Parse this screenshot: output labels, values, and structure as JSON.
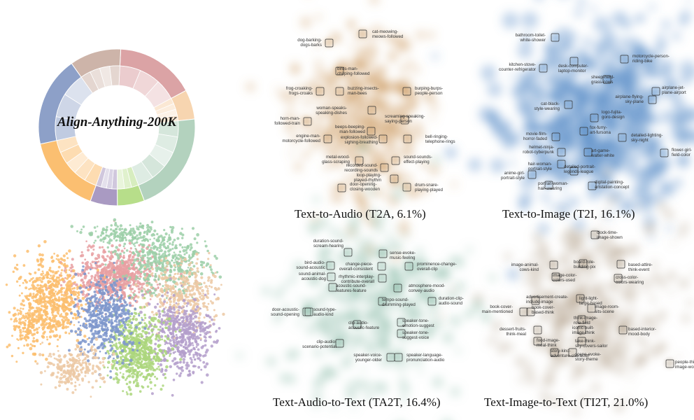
{
  "colors": {
    "ring_outer": [
      "#dba3a5",
      "#f7d5b0",
      "#b3d2be",
      "#b7de8a",
      "#a99ac2",
      "#fbbf71",
      "#8da0c8",
      "#cdb4a9"
    ],
    "t2a": "#c9965a",
    "t2i": "#5b8fc9",
    "ta2t": "#86b8a3",
    "ti2t": "#a59178",
    "scatter_pink": "#e7a0a2",
    "scatter_green": "#9ccfa8",
    "scatter_orange": "#fbbe6e",
    "scatter_blue": "#7f98cc",
    "scatter_lime": "#abd67c",
    "scatter_purple": "#b49fcb",
    "scatter_tan": "#ecc9a5"
  },
  "overview": {
    "title": "Align-Anything-200K"
  },
  "chart_data": [
    {
      "type": "pie",
      "title": "Align-Anything-200K",
      "slices": [
        {
          "value": 16.4,
          "color": "#dba3a5"
        },
        {
          "value": 6.1,
          "color": "#f7d5b0"
        },
        {
          "value": 21.0,
          "color": "#b3d2be"
        },
        {
          "value": 5.6,
          "color": "#b7de8a"
        },
        {
          "value": 5.6,
          "color": "#a99ac2"
        },
        {
          "value": 16.1,
          "color": "#fbbf71"
        },
        {
          "value": 18.6,
          "color": "#8da0c8"
        },
        {
          "value": 10.6,
          "color": "#cdb4a9"
        }
      ]
    },
    {
      "type": "scatter",
      "caption": "Text-to-Audio (T2A, 6.1%)",
      "labels": [
        [
          "cat-meowing-",
          "meows-followed"
        ],
        [
          "dog-barking-",
          "dogs-barks"
        ],
        [
          "birds-man-",
          "chirping-followed"
        ],
        [
          "frog-croaking-",
          "frogs-croaks"
        ],
        [
          "buzzing-insects-",
          "man-bees"
        ],
        [
          "burping-burps-",
          "people-person"
        ],
        [
          "woman-speaks-",
          "speaking-dishes"
        ],
        [
          "screaming-speaking-",
          "saying-person"
        ],
        [
          "horn-man-",
          "followed-train"
        ],
        [
          "beeps-beeping-",
          "man-followed"
        ],
        [
          "engine-man-",
          "motorcycle-followed"
        ],
        [
          "explosion-followed-",
          "sighing-breathing"
        ],
        [
          "bell-ringing-",
          "telephone-rings"
        ],
        [
          "metal-wood-",
          "glass-scraping"
        ],
        [
          "sound-sounds-",
          "effect-playing"
        ],
        [
          "recorded-sound-",
          "recording-sounds"
        ],
        [
          "loop-playing-",
          "played-rhythm"
        ],
        [
          "drum-snare-",
          "playing-played"
        ],
        [
          "door-opening-",
          "closing-wooden"
        ]
      ]
    },
    {
      "type": "scatter",
      "caption": "Text-to-Image (T2I, 16.1%)",
      "labels": [
        [
          "bathroom-toilet-",
          "white-shower"
        ],
        [
          "kitchen-stove-",
          "counter-refrigerator"
        ],
        [
          "desk-computer-",
          "laptop-monitor"
        ],
        [
          "motorcycle-person-",
          "riding-bike"
        ],
        [
          "sheep-herd-",
          "grass-cows"
        ],
        [
          "airplane-jet-",
          "plane-airport"
        ],
        [
          "airplane-flying-",
          "sky-plane"
        ],
        [
          "cat-black-",
          "style-wearing"
        ],
        [
          "logo-fujita-",
          "goro-design"
        ],
        [
          "fox-furry-",
          "art-fursona"
        ],
        [
          "movie-film-",
          "horror-faded"
        ],
        [
          "detailed-lighting-",
          "sky-night"
        ],
        [
          "helmet-ninja-",
          "robot-cyberpunk"
        ],
        [
          "art-game-",
          "walter-white"
        ],
        [
          "flower-girl-",
          "field-color"
        ],
        [
          "hair-woman-",
          "portrait-style"
        ],
        [
          "detailed-portrait-",
          "legends-league"
        ],
        [
          "anime-girl-",
          "portrait-style"
        ],
        [
          "portrait-woman-",
          "hair-wearing"
        ],
        [
          "digital-painting-",
          "artstation-concept"
        ]
      ]
    },
    {
      "type": "scatter",
      "caption": "Text-Audio-to-Text (TA2T, 16.4%)",
      "labels": [
        [
          "duration-sound-",
          "scream-hearing"
        ],
        [
          "sense-evoke-",
          "music-feeling"
        ],
        [
          "bird-audio-",
          "sound-acoustic"
        ],
        [
          "change-piece-",
          "overall-consistent"
        ],
        [
          "prominence-change-",
          "overall-clip"
        ],
        [
          "sound-animal-",
          "acoustic-dog"
        ],
        [
          "rhythmic-interplay-",
          "contribute-overall"
        ],
        [
          "acoustic-sound-",
          "features-feature"
        ],
        [
          "atmosphere-mood-",
          "convey-audio"
        ],
        [
          "tempo-sound-",
          "drumming-played"
        ],
        [
          "duration-clip-",
          "audio-sound"
        ],
        [
          "door-acoustic-",
          "sound-opening"
        ],
        [
          "sound-type-",
          "audio-kind"
        ],
        [
          "speaker-tone-",
          "emotion-suggest"
        ],
        [
          "clip-audio-",
          "acoustic-feature"
        ],
        [
          "speaker-tone-",
          "suggest-voice"
        ],
        [
          "clip-audio-",
          "scenario-potential"
        ],
        [
          "speaker-voice-",
          "younger-older"
        ],
        [
          "speaker-language-",
          "pronunciation-audio"
        ]
      ]
    },
    {
      "type": "scatter",
      "caption": "Text-Image-to-Text (TI2T, 21.0%)",
      "labels": [
        [
          "clock-time-",
          "image-shown"
        ],
        [
          "image-animal-",
          "cows-kind"
        ],
        [
          "board-role-",
          "building-pix"
        ],
        [
          "based-attire-",
          "think-event"
        ],
        [
          "image-color-",
          "colors-used"
        ],
        [
          "cross-color-",
          "colors-wearing"
        ],
        [
          "advertisement-create-",
          "include-image"
        ],
        [
          "light-light-",
          "large-based"
        ],
        [
          "image-room-",
          "sits-scene"
        ],
        [
          "book-cover-",
          "main-mentioned"
        ],
        [
          "book-cover-",
          "based-think"
        ],
        [
          "think-image-",
          "role-field"
        ],
        [
          "dessert-fruits-",
          "think-meal"
        ],
        [
          "iconic-built-",
          "image-think"
        ],
        [
          "based-interior-",
          "mood-body"
        ],
        [
          "food-image-",
          "meal-think"
        ],
        [
          "take-think-",
          "sky-covers-sailor"
        ],
        [
          "story-kind-",
          "adventure-character"
        ],
        [
          "scene-evoke-",
          "story-theme"
        ],
        [
          "people-think-",
          "image-working"
        ]
      ]
    }
  ]
}
